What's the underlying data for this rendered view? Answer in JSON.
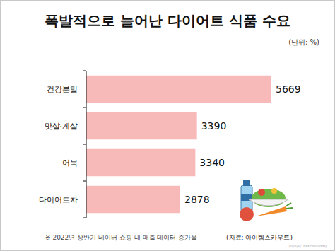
{
  "chart_data": {
    "type": "bar",
    "orientation": "horizontal",
    "title": "폭발적으로 늘어난 다이어트 식품 수요",
    "subtitle": "(단위: %)",
    "categories": [
      "건강분말",
      "맛살·게살",
      "어묵",
      "다이어트차"
    ],
    "values": [
      5669,
      3390,
      3340,
      2878
    ],
    "color": "#f8b9b9",
    "xlim": [
      0,
      5669
    ],
    "data_labels": true,
    "tick_labels": "y",
    "grid": false,
    "annotations": [
      "※ 2022년 상반기 네이버 쇼핑 내 매출 데이터 증가율",
      "(자료: 아이템스카우트)",
      "(이미지: flaticon.com)"
    ]
  }
}
